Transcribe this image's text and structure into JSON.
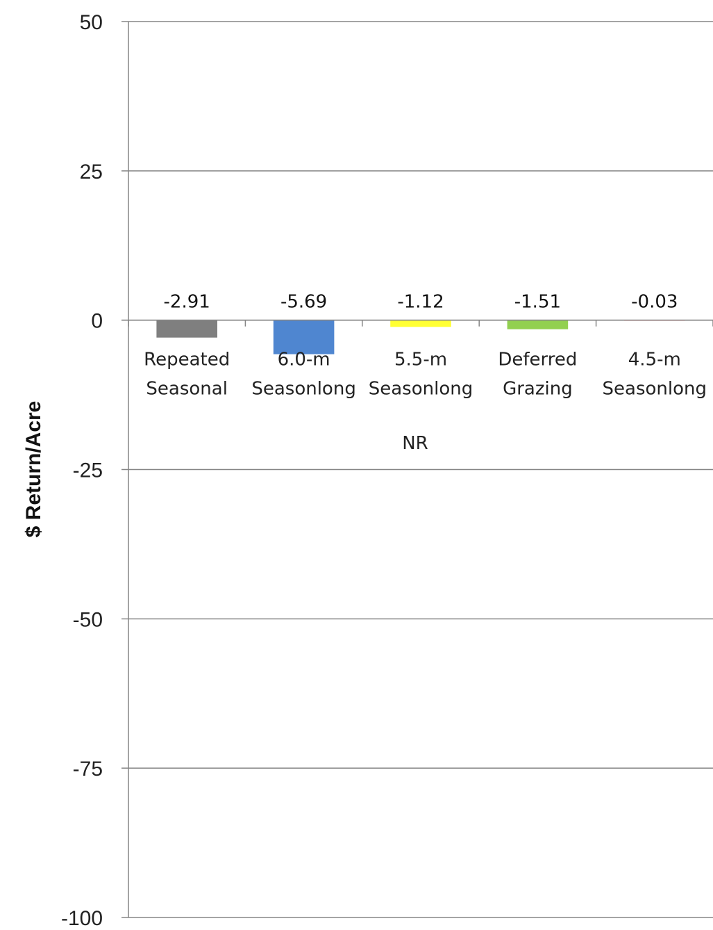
{
  "chart_data": {
    "type": "bar",
    "ylabel": "$ Return/Acre",
    "group_label": "NR",
    "ylim": [
      -100,
      50
    ],
    "yticks": [
      "50",
      "25",
      "0",
      "-25",
      "-50",
      "-75",
      "-100"
    ],
    "grid": true,
    "categories": [
      [
        "Repeated",
        "Seasonal"
      ],
      [
        "6.0-m",
        "Seasonlong"
      ],
      [
        "5.5-m",
        "Seasonlong"
      ],
      [
        "Deferred",
        "Grazing"
      ],
      [
        "4.5-m",
        "Seasonlong"
      ]
    ],
    "values": [
      -2.91,
      -5.69,
      -1.12,
      -1.51,
      -0.03
    ],
    "value_labels": [
      "-2.91",
      "-5.69",
      "-1.12",
      "-1.51",
      "-0.03"
    ],
    "colors": [
      "#7f7f7f",
      "#4f86d0",
      "#ffff33",
      "#92d050",
      "#f4a6a6"
    ]
  }
}
